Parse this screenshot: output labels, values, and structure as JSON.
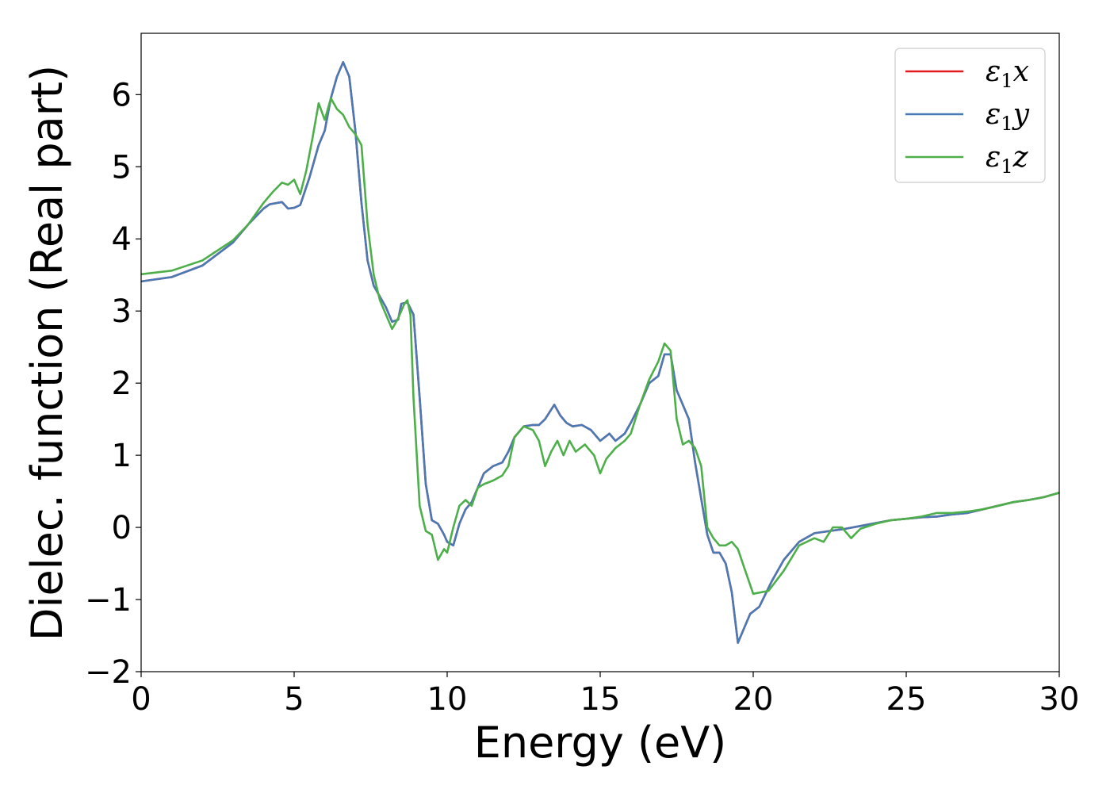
{
  "chart_data": {
    "type": "line",
    "xlabel": "Energy (eV)",
    "ylabel": "Dielec. function (Real part)",
    "xlim": [
      0,
      30
    ],
    "ylim": [
      -2,
      6.85
    ],
    "xticks": [
      0,
      5,
      10,
      15,
      20,
      25,
      30
    ],
    "yticks": [
      -2,
      -1,
      0,
      1,
      2,
      3,
      4,
      5,
      6
    ],
    "xtick_labels": [
      "0",
      "5",
      "10",
      "15",
      "20",
      "25",
      "30"
    ],
    "ytick_labels": [
      "−2",
      "−1",
      "0",
      "1",
      "2",
      "3",
      "4",
      "5",
      "6"
    ],
    "grid": false,
    "legend_position": "top-right",
    "series": [
      {
        "name": "ε1x",
        "symbol": "ε",
        "sub": "1",
        "suffix": "x",
        "color": "#e41a1c",
        "x": [
          0,
          1,
          2,
          3,
          3.5,
          4,
          4.2,
          4.6,
          4.8,
          5.0,
          5.2,
          5.5,
          5.8,
          6.0,
          6.2,
          6.4,
          6.6,
          6.8,
          7.0,
          7.2,
          7.4,
          7.6,
          7.8,
          8.0,
          8.2,
          8.4,
          8.5,
          8.7,
          8.9,
          9.1,
          9.3,
          9.5,
          9.7,
          9.9,
          10.0,
          10.2,
          10.4,
          10.6,
          10.8,
          11.0,
          11.2,
          11.5,
          11.8,
          12.0,
          12.2,
          12.5,
          12.8,
          13.0,
          13.2,
          13.5,
          13.7,
          13.9,
          14.1,
          14.4,
          14.7,
          15.0,
          15.3,
          15.5,
          15.8,
          16.0,
          16.3,
          16.6,
          16.9,
          17.1,
          17.3,
          17.5,
          17.7,
          17.9,
          18.1,
          18.3,
          18.5,
          18.7,
          18.9,
          19.1,
          19.3,
          19.5,
          19.7,
          19.9,
          20.2,
          20.6,
          21.0,
          21.5,
          22.0,
          22.5,
          23.0,
          23.5,
          24.0,
          24.5,
          25.0,
          25.5,
          26.0,
          26.5,
          27.0,
          27.5,
          28.0,
          28.5,
          29.0,
          29.5,
          30.0
        ],
        "y": [
          3.41,
          3.47,
          3.63,
          3.95,
          4.2,
          4.42,
          4.48,
          4.51,
          4.42,
          4.43,
          4.47,
          4.85,
          5.3,
          5.5,
          5.95,
          6.25,
          6.45,
          6.25,
          5.5,
          4.5,
          3.7,
          3.35,
          3.2,
          3.05,
          2.85,
          2.88,
          3.1,
          3.12,
          2.95,
          1.8,
          0.6,
          0.1,
          0.05,
          -0.1,
          -0.2,
          -0.25,
          0.05,
          0.25,
          0.35,
          0.55,
          0.75,
          0.85,
          0.9,
          1.05,
          1.25,
          1.4,
          1.42,
          1.42,
          1.5,
          1.7,
          1.55,
          1.45,
          1.4,
          1.42,
          1.35,
          1.2,
          1.3,
          1.2,
          1.3,
          1.45,
          1.7,
          2.0,
          2.1,
          2.4,
          2.4,
          1.9,
          1.7,
          1.5,
          0.9,
          0.4,
          -0.1,
          -0.35,
          -0.35,
          -0.5,
          -0.9,
          -1.6,
          -1.4,
          -1.2,
          -1.1,
          -0.75,
          -0.45,
          -0.2,
          -0.08,
          -0.05,
          -0.02,
          0.02,
          0.06,
          0.1,
          0.12,
          0.14,
          0.15,
          0.18,
          0.2,
          0.25,
          0.3,
          0.35,
          0.38,
          0.42,
          0.48
        ]
      },
      {
        "name": "ε1y",
        "symbol": "ε",
        "sub": "1",
        "suffix": "y",
        "color": "#4a7ab5",
        "x": [
          0,
          1,
          2,
          3,
          3.5,
          4,
          4.2,
          4.6,
          4.8,
          5.0,
          5.2,
          5.5,
          5.8,
          6.0,
          6.2,
          6.4,
          6.6,
          6.8,
          7.0,
          7.2,
          7.4,
          7.6,
          7.8,
          8.0,
          8.2,
          8.4,
          8.5,
          8.7,
          8.9,
          9.1,
          9.3,
          9.5,
          9.7,
          9.9,
          10.0,
          10.2,
          10.4,
          10.6,
          10.8,
          11.0,
          11.2,
          11.5,
          11.8,
          12.0,
          12.2,
          12.5,
          12.8,
          13.0,
          13.2,
          13.5,
          13.7,
          13.9,
          14.1,
          14.4,
          14.7,
          15.0,
          15.3,
          15.5,
          15.8,
          16.0,
          16.3,
          16.6,
          16.9,
          17.1,
          17.3,
          17.5,
          17.7,
          17.9,
          18.1,
          18.3,
          18.5,
          18.7,
          18.9,
          19.1,
          19.3,
          19.5,
          19.7,
          19.9,
          20.2,
          20.6,
          21.0,
          21.5,
          22.0,
          22.5,
          23.0,
          23.5,
          24.0,
          24.5,
          25.0,
          25.5,
          26.0,
          26.5,
          27.0,
          27.5,
          28.0,
          28.5,
          29.0,
          29.5,
          30.0
        ],
        "y": [
          3.41,
          3.47,
          3.63,
          3.95,
          4.2,
          4.42,
          4.48,
          4.51,
          4.42,
          4.43,
          4.47,
          4.85,
          5.3,
          5.5,
          5.95,
          6.25,
          6.45,
          6.25,
          5.5,
          4.5,
          3.7,
          3.35,
          3.2,
          3.05,
          2.85,
          2.88,
          3.1,
          3.12,
          2.95,
          1.8,
          0.6,
          0.1,
          0.05,
          -0.1,
          -0.2,
          -0.25,
          0.05,
          0.25,
          0.35,
          0.55,
          0.75,
          0.85,
          0.9,
          1.05,
          1.25,
          1.4,
          1.42,
          1.42,
          1.5,
          1.7,
          1.55,
          1.45,
          1.4,
          1.42,
          1.35,
          1.2,
          1.3,
          1.2,
          1.3,
          1.45,
          1.7,
          2.0,
          2.1,
          2.4,
          2.4,
          1.9,
          1.7,
          1.5,
          0.9,
          0.4,
          -0.1,
          -0.35,
          -0.35,
          -0.5,
          -0.9,
          -1.6,
          -1.4,
          -1.2,
          -1.1,
          -0.75,
          -0.45,
          -0.2,
          -0.08,
          -0.05,
          -0.02,
          0.02,
          0.06,
          0.1,
          0.12,
          0.14,
          0.15,
          0.18,
          0.2,
          0.25,
          0.3,
          0.35,
          0.38,
          0.42,
          0.48
        ]
      },
      {
        "name": "ε1z",
        "symbol": "ε",
        "sub": "1",
        "suffix": "z",
        "color": "#4daf4a",
        "x": [
          0,
          1,
          2,
          3,
          3.5,
          4,
          4.3,
          4.6,
          4.8,
          5.0,
          5.2,
          5.4,
          5.6,
          5.8,
          6.0,
          6.2,
          6.4,
          6.6,
          6.8,
          7.0,
          7.2,
          7.4,
          7.6,
          7.8,
          8.0,
          8.2,
          8.4,
          8.6,
          8.7,
          8.8,
          8.9,
          9.1,
          9.3,
          9.5,
          9.7,
          9.9,
          10.0,
          10.2,
          10.4,
          10.6,
          10.8,
          11.0,
          11.2,
          11.5,
          11.8,
          12.0,
          12.2,
          12.5,
          12.8,
          13.0,
          13.2,
          13.4,
          13.6,
          13.8,
          14.0,
          14.2,
          14.5,
          14.8,
          15.0,
          15.2,
          15.5,
          15.8,
          16.0,
          16.3,
          16.6,
          16.9,
          17.1,
          17.3,
          17.5,
          17.7,
          17.9,
          18.1,
          18.3,
          18.5,
          18.7,
          18.9,
          19.1,
          19.3,
          19.5,
          19.7,
          20.0,
          20.5,
          21.0,
          21.5,
          22.0,
          22.3,
          22.6,
          22.9,
          23.2,
          23.5,
          24.0,
          24.5,
          25.0,
          25.5,
          26.0,
          26.5,
          27.0,
          27.5,
          28.0,
          28.5,
          29.0,
          29.5,
          30.0
        ],
        "y": [
          3.51,
          3.56,
          3.7,
          3.98,
          4.2,
          4.5,
          4.65,
          4.78,
          4.75,
          4.82,
          4.62,
          4.95,
          5.4,
          5.88,
          5.65,
          5.95,
          5.8,
          5.72,
          5.55,
          5.45,
          5.3,
          4.2,
          3.5,
          3.15,
          2.95,
          2.75,
          2.9,
          3.1,
          3.15,
          2.95,
          1.8,
          0.3,
          -0.05,
          -0.1,
          -0.45,
          -0.3,
          -0.35,
          0.0,
          0.3,
          0.38,
          0.3,
          0.55,
          0.6,
          0.65,
          0.72,
          0.85,
          1.25,
          1.4,
          1.35,
          1.2,
          0.85,
          1.05,
          1.2,
          1.0,
          1.2,
          1.05,
          1.15,
          1.0,
          0.75,
          0.95,
          1.1,
          1.2,
          1.3,
          1.7,
          2.05,
          2.3,
          2.55,
          2.45,
          1.5,
          1.15,
          1.2,
          1.1,
          0.85,
          0.0,
          -0.15,
          -0.25,
          -0.25,
          -0.2,
          -0.3,
          -0.55,
          -0.92,
          -0.88,
          -0.6,
          -0.25,
          -0.15,
          -0.2,
          0.0,
          0.0,
          -0.15,
          -0.02,
          0.05,
          0.1,
          0.12,
          0.15,
          0.2,
          0.2,
          0.22,
          0.25,
          0.3,
          0.35,
          0.38,
          0.42,
          0.48
        ]
      }
    ]
  }
}
